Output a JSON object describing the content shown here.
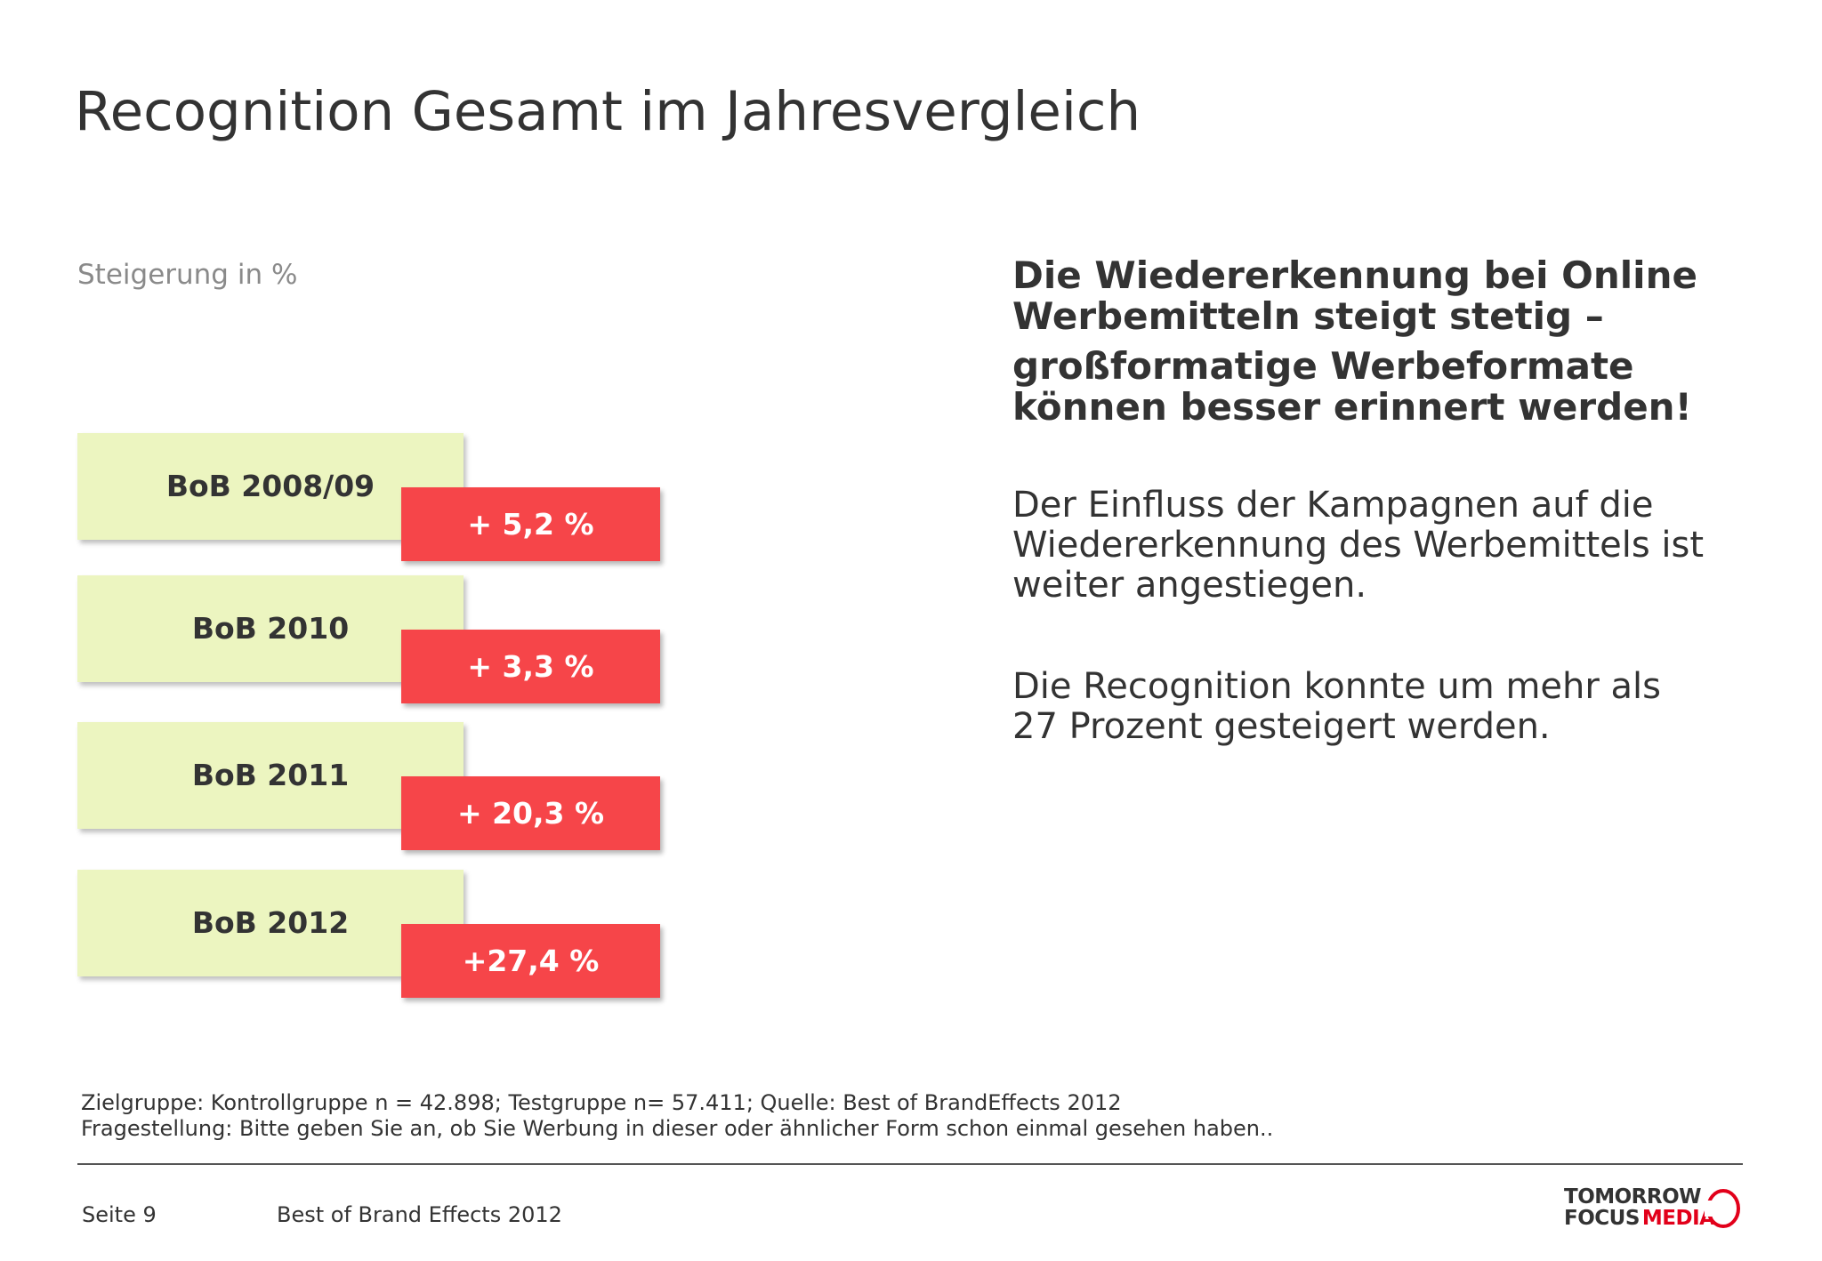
{
  "title": "Recognition Gesamt im Jahresvergleich",
  "subtitle": "Steigerung in %",
  "rows": [
    {
      "label": "BoB 2008/09",
      "value": "+ 5,2 %"
    },
    {
      "label": "BoB 2010",
      "value": "+ 3,3 %"
    },
    {
      "label": "BoB 2011",
      "value": "+ 20,3 %"
    },
    {
      "label": "BoB 2012",
      "value": "+27,4 %"
    }
  ],
  "headline": {
    "line1": "Die Wiedererkennung bei Online",
    "line2": "Werbemitteln steigt stetig –",
    "line3": "großformatige Werbeformate",
    "line4": "können besser erinnert werden!"
  },
  "paragraph1": {
    "line1": "Der Einfluss der Kampagnen auf die",
    "line2": "Wiedererkennung des Werbemittels ist",
    "line3": "weiter angestiegen."
  },
  "paragraph2": {
    "line1": "Die Recognition konnte um mehr als",
    "line2": "27 Prozent gesteigert werden."
  },
  "footnotes": {
    "line1": "Zielgruppe: Kontrollgruppe n = 42.898; Testgruppe n= 57.411; Quelle: Best of BrandEffects 2012",
    "line2": "Fragestellung: Bitte geben Sie an, ob Sie Werbung in dieser oder ähnlicher Form schon einmal gesehen haben.."
  },
  "footer": {
    "page": "Seite 9",
    "document": "Best of Brand Effects 2012"
  },
  "logo": {
    "line1": "TOMORROW",
    "line2a": "FOCUS",
    "line2b": "MEDIA",
    "icon": "crescent-ring-icon"
  },
  "colors": {
    "label_box": "#ecf5c0",
    "value_box": "#f64549",
    "logo_red": "#e2001a"
  }
}
